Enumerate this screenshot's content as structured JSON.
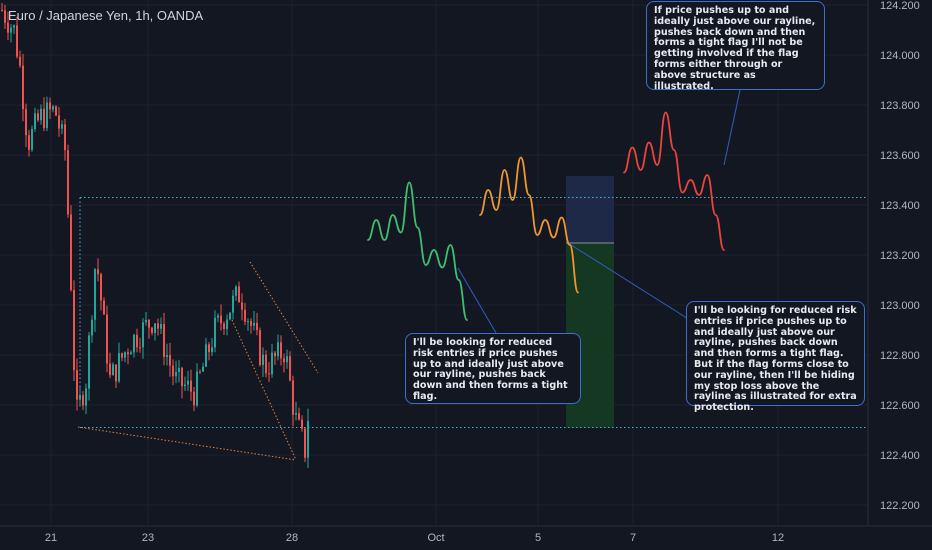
{
  "header": {
    "symbol": "Euro / Japanese Yen, 1h, OANDA"
  },
  "annotations": {
    "top_right": "If price pushes up to and ideally just above our rayline, pushes back down and then forms a tight flag I'll not be getting involved if the flag forms either through or above structure as illustrated.",
    "middle": "I'll be looking for reduced risk entries if price pushes up to and ideally just above our rayline, pushes back down and then forms a tight flag.",
    "right": "I'll be looking for reduced risk entries if price pushes up to and ideally just above our rayline, pushes back down and then forms a tight flag. But if the flag forms close to our rayline, then I'll be hiding my stop loss above the rayline as illustrated for extra protection."
  },
  "colors": {
    "background": "#131722",
    "bull": "#26a69a",
    "bear": "#ef5350",
    "rayline": "#4fb3d9",
    "path_green": "#3fbf6f",
    "path_orange": "#f0962f",
    "path_red": "#e8453c",
    "wedge": "#e4803a",
    "stop_zone": "#1e2a4a",
    "target_zone": "#143a22"
  },
  "chart_data": {
    "type": "candlestick",
    "y_ticks": [
      "124.200",
      "124.000",
      "123.800",
      "123.600",
      "123.400",
      "123.200",
      "123.000",
      "122.800",
      "122.600",
      "122.400",
      "122.200"
    ],
    "x_ticks": [
      "21",
      "23",
      "28",
      "Oct",
      "5",
      "7",
      "12"
    ],
    "ylim": [
      122.14,
      124.22
    ],
    "levels": {
      "upper_rayline": 123.43,
      "lower_rayline": 122.51
    },
    "projected_paths": [
      {
        "color": "green",
        "points": [
          [
            1,
            123.26
          ],
          [
            2,
            123.34
          ],
          [
            3,
            123.26
          ],
          [
            4,
            123.36
          ],
          [
            5,
            123.29
          ],
          [
            6,
            123.49
          ],
          [
            7,
            123.31
          ],
          [
            8,
            123.16
          ],
          [
            9,
            123.22
          ],
          [
            10,
            123.15
          ],
          [
            11,
            123.24
          ],
          [
            12,
            123.1
          ],
          [
            13,
            122.94
          ]
        ]
      },
      {
        "color": "orange",
        "points": [
          [
            1,
            123.36
          ],
          [
            2,
            123.46
          ],
          [
            3,
            123.38
          ],
          [
            4,
            123.54
          ],
          [
            5,
            123.42
          ],
          [
            6,
            123.59
          ],
          [
            7,
            123.44
          ],
          [
            8,
            123.28
          ],
          [
            9,
            123.34
          ],
          [
            10,
            123.27
          ],
          [
            11,
            123.35
          ],
          [
            12,
            123.24
          ],
          [
            13,
            123.05
          ]
        ]
      },
      {
        "color": "red",
        "points": [
          [
            1,
            123.53
          ],
          [
            2,
            123.63
          ],
          [
            3,
            123.54
          ],
          [
            4,
            123.65
          ],
          [
            5,
            123.56
          ],
          [
            6,
            123.77
          ],
          [
            7,
            123.62
          ],
          [
            8,
            123.45
          ],
          [
            9,
            123.5
          ],
          [
            10,
            123.44
          ],
          [
            11,
            123.52
          ],
          [
            12,
            123.36
          ],
          [
            13,
            123.22
          ]
        ]
      }
    ]
  }
}
